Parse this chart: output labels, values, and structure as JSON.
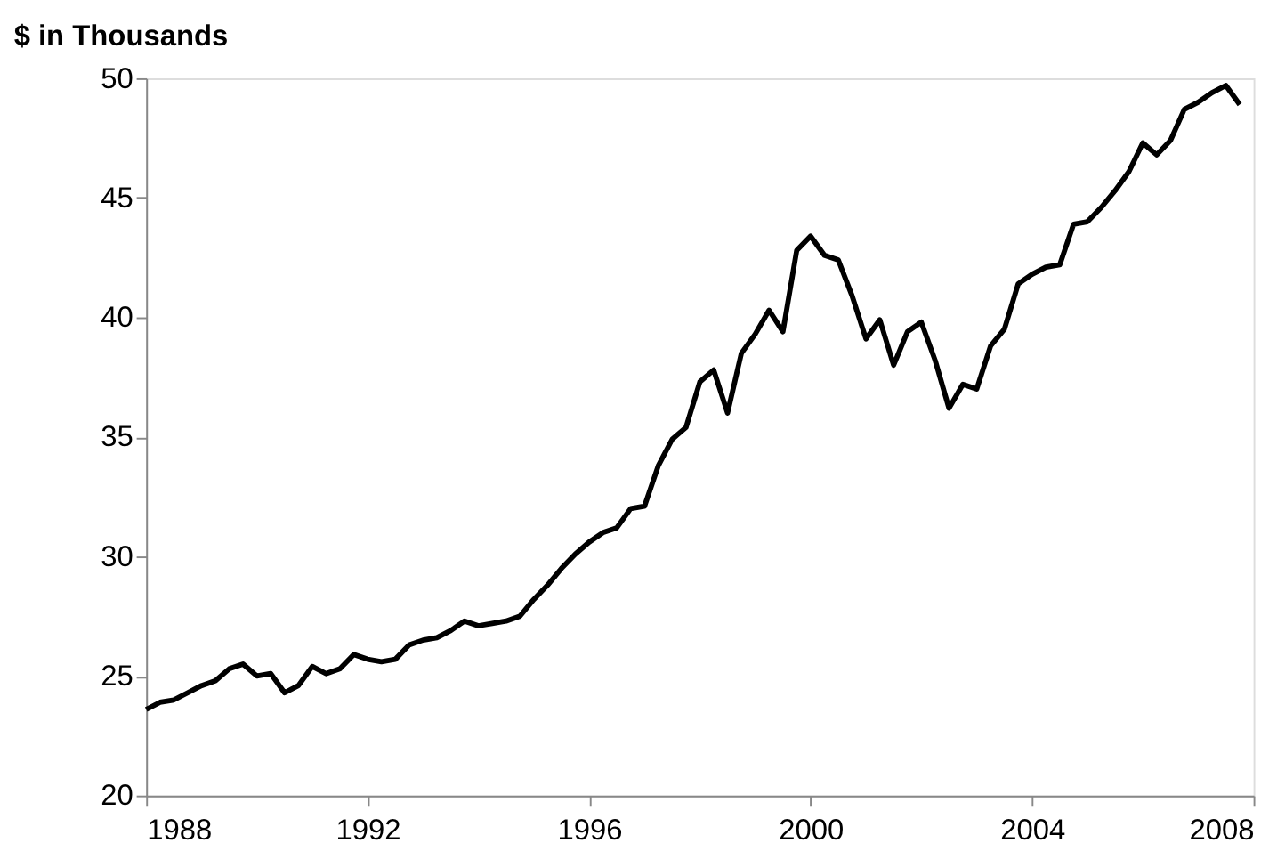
{
  "chart_data": {
    "type": "line",
    "title": "$ in Thousands",
    "x": [
      1988.0,
      1988.25,
      1988.5,
      1988.75,
      1989.0,
      1989.25,
      1989.5,
      1989.75,
      1990.0,
      1990.25,
      1990.5,
      1990.75,
      1991.0,
      1991.25,
      1991.5,
      1991.75,
      1992.0,
      1992.25,
      1992.5,
      1992.75,
      1993.0,
      1993.25,
      1993.5,
      1993.75,
      1994.0,
      1994.25,
      1994.5,
      1994.75,
      1995.0,
      1995.25,
      1995.5,
      1995.75,
      1996.0,
      1996.25,
      1996.5,
      1996.75,
      1997.0,
      1997.25,
      1997.5,
      1997.75,
      1998.0,
      1998.25,
      1998.5,
      1998.75,
      1999.0,
      1999.25,
      1999.5,
      1999.75,
      2000.0,
      2000.25,
      2000.5,
      2000.75,
      2001.0,
      2001.25,
      2001.5,
      2001.75,
      2002.0,
      2002.25,
      2002.5,
      2002.75,
      2003.0,
      2003.25,
      2003.5,
      2003.75,
      2004.0,
      2004.25,
      2004.5,
      2004.75,
      2005.0,
      2005.25,
      2005.5,
      2005.75,
      2006.0,
      2006.25,
      2006.5,
      2006.75,
      2007.0,
      2007.25,
      2007.5,
      2007.75
    ],
    "series": [
      {
        "color": "#000000",
        "values": [
          23.6,
          23.9,
          24.0,
          24.3,
          24.6,
          24.8,
          25.3,
          25.5,
          25.0,
          25.1,
          24.3,
          24.6,
          25.4,
          25.1,
          25.3,
          25.9,
          25.7,
          25.6,
          25.7,
          26.3,
          26.5,
          26.6,
          26.9,
          27.3,
          27.1,
          27.2,
          27.3,
          27.5,
          28.2,
          28.8,
          29.5,
          30.1,
          30.6,
          31.0,
          31.2,
          32.0,
          32.1,
          33.8,
          34.9,
          35.4,
          37.3,
          37.8,
          36.0,
          38.5,
          39.3,
          40.3,
          39.4,
          42.8,
          43.4,
          42.6,
          42.4,
          40.9,
          39.1,
          39.9,
          38.0,
          39.4,
          39.8,
          38.2,
          36.2,
          37.2,
          37.0,
          38.8,
          39.5,
          41.4,
          41.8,
          42.1,
          42.2,
          43.9,
          44.0,
          44.6,
          45.3,
          46.1,
          47.3,
          46.8,
          47.4,
          48.7,
          49.0,
          49.4,
          49.7,
          48.9
        ]
      }
    ],
    "xlim": [
      1988,
      2008
    ],
    "xticks": [
      1988,
      1992,
      1996,
      2000,
      2004,
      2008
    ],
    "ylim": [
      20,
      50
    ],
    "yticks": [
      20,
      25,
      30,
      35,
      40,
      45,
      50
    ],
    "grid": false,
    "legend": false,
    "marker": "none",
    "line_style": "solid"
  }
}
